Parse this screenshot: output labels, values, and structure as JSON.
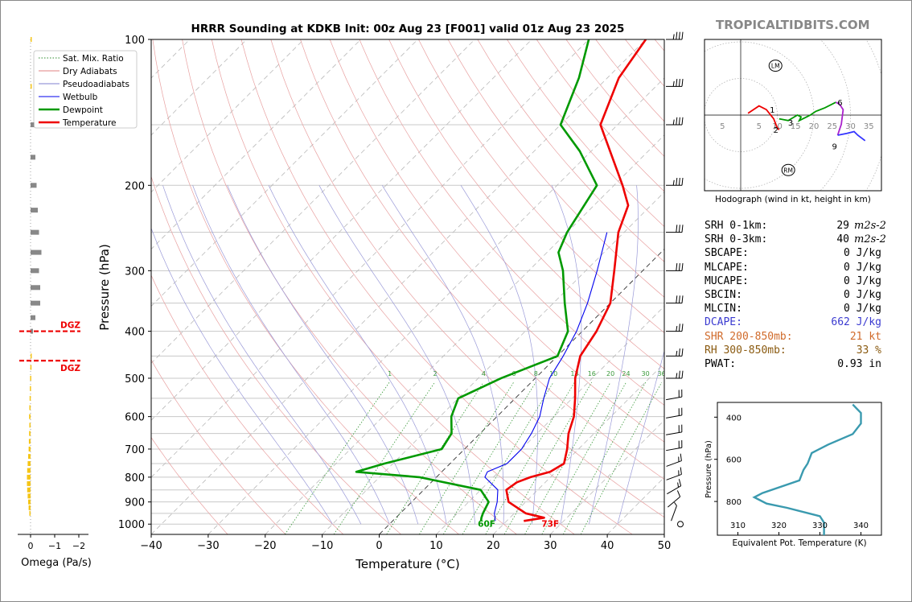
{
  "site_label": "TROPICALTIDBITS.COM",
  "chart_data": [
    {
      "type": "line",
      "name": "skewt",
      "title": "HRRR Sounding at KDKB Init: 00z Aug 23 [F001] valid 01z Aug 23 2025",
      "xlabel": "Temperature (°C)",
      "ylabel": "Pressure (hPa)",
      "xlim": [
        -40,
        50
      ],
      "ylim": [
        1050,
        100
      ],
      "y_scale": "log",
      "skew": true,
      "grid": true,
      "legend_position": "top-left",
      "x_ticks": [
        -40,
        -30,
        -20,
        -10,
        0,
        10,
        20,
        30,
        40,
        50
      ],
      "y_ticks": [
        100,
        200,
        300,
        400,
        500,
        600,
        700,
        800,
        900,
        1000
      ],
      "legend": [
        {
          "label": "Sat. Mix. Ratio",
          "color": "#2e8b2e",
          "style": "dotted"
        },
        {
          "label": "Dry Adiabats",
          "color": "#e08080",
          "style": "solid"
        },
        {
          "label": "Pseudoadiabats",
          "color": "#8080d0",
          "style": "solid"
        },
        {
          "label": "Wetbulb",
          "color": "#0000ee",
          "style": "solid"
        },
        {
          "label": "Dewpoint",
          "color": "#009900",
          "style": "solid"
        },
        {
          "label": "Temperature",
          "color": "#ee0000",
          "style": "solid"
        }
      ],
      "series": [
        {
          "name": "Temperature",
          "color": "#ee0000",
          "points": [
            [
              985,
              23.0
            ],
            [
              970,
              26.0
            ],
            [
              950,
              22.0
            ],
            [
              900,
              17.0
            ],
            [
              850,
              14.5
            ],
            [
              820,
              15.0
            ],
            [
              800,
              16.5
            ],
            [
              780,
              19.0
            ],
            [
              750,
              20.0
            ],
            [
              700,
              18.0
            ],
            [
              650,
              15.5
            ],
            [
              600,
              13.5
            ],
            [
              550,
              10.5
            ],
            [
              500,
              7.0
            ],
            [
              450,
              4.0
            ],
            [
              400,
              2.5
            ],
            [
              350,
              0.0
            ],
            [
              300,
              -5.0
            ],
            [
              250,
              -11.0
            ],
            [
              220,
              -14.0
            ],
            [
              200,
              -18.5
            ],
            [
              150,
              -33.0
            ],
            [
              120,
              -38.0
            ],
            [
              100,
              -40.0
            ]
          ]
        },
        {
          "name": "Dewpoint",
          "color": "#009900",
          "points": [
            [
              985,
              15.5
            ],
            [
              970,
              15.0
            ],
            [
              950,
              14.5
            ],
            [
              900,
              13.5
            ],
            [
              850,
              10.0
            ],
            [
              800,
              -3.0
            ],
            [
              780,
              -15.0
            ],
            [
              750,
              -11.5
            ],
            [
              700,
              -4.0
            ],
            [
              650,
              -5.0
            ],
            [
              600,
              -8.0
            ],
            [
              550,
              -10.0
            ],
            [
              500,
              -6.0
            ],
            [
              450,
              0.0
            ],
            [
              400,
              -2.5
            ],
            [
              350,
              -8.0
            ],
            [
              300,
              -14.0
            ],
            [
              275,
              -18.0
            ],
            [
              250,
              -20.0
            ],
            [
              200,
              -23.0
            ],
            [
              170,
              -32.0
            ],
            [
              150,
              -40.0
            ],
            [
              120,
              -45.0
            ],
            [
              100,
              -50.0
            ]
          ]
        },
        {
          "name": "Wetbulb",
          "color": "#0000ee",
          "points": [
            [
              985,
              18.0
            ],
            [
              950,
              16.5
            ],
            [
              900,
              15.0
            ],
            [
              850,
              13.0
            ],
            [
              800,
              8.5
            ],
            [
              780,
              8.0
            ],
            [
              750,
              10.0
            ],
            [
              700,
              10.0
            ],
            [
              650,
              9.0
            ],
            [
              600,
              7.5
            ],
            [
              550,
              5.0
            ],
            [
              500,
              2.5
            ],
            [
              450,
              1.0
            ],
            [
              400,
              -1.0
            ],
            [
              350,
              -4.0
            ],
            [
              300,
              -8.0
            ],
            [
              250,
              -13.0
            ]
          ]
        }
      ],
      "dry_adiabats_theta_c": [
        -30,
        -20,
        -10,
        0,
        10,
        20,
        30,
        40,
        50,
        60,
        70,
        80,
        90,
        100,
        110,
        120,
        130,
        140,
        150,
        160,
        170,
        180,
        190,
        200
      ],
      "pseudoadiabats_c": [
        -10,
        -5,
        0,
        5,
        10,
        15,
        20,
        25,
        30,
        35,
        40
      ],
      "mixing_ratio_gkg": [
        1,
        2,
        4,
        6,
        8,
        10,
        13,
        16,
        20,
        24,
        30,
        36
      ],
      "mixing_ratio_labels": [
        "1",
        "2",
        "4",
        "6",
        "8",
        "10",
        "13",
        "16",
        "20",
        "24",
        "30",
        "36"
      ],
      "annotations": {
        "surface_temp": "73F",
        "surface_dewpoint": "60F",
        "isotherm_zero_c": 0
      },
      "wind_barbs_hpa": [
        1000,
        950,
        900,
        850,
        800,
        750,
        700,
        650,
        600,
        550,
        500,
        450,
        400,
        350,
        300,
        250,
        200,
        150,
        125,
        100
      ],
      "wind_speed_kt": [
        0,
        5,
        10,
        15,
        15,
        15,
        20,
        20,
        20,
        20,
        25,
        25,
        25,
        30,
        30,
        30,
        35,
        35,
        35,
        35
      ],
      "wind_dir_deg": [
        0,
        200,
        230,
        240,
        250,
        250,
        260,
        260,
        260,
        260,
        270,
        270,
        270,
        270,
        270,
        270,
        270,
        270,
        270,
        270
      ]
    },
    {
      "type": "bar",
      "name": "omega",
      "xlabel": "Omega (Pa/s)",
      "xlim": [
        0.2,
        -2
      ],
      "x_ticks": [
        0,
        -1,
        -2
      ],
      "levels_hpa": [
        950,
        925,
        900,
        875,
        850,
        825,
        800,
        775,
        750,
        725,
        700,
        675,
        650,
        625,
        600,
        575,
        550,
        525,
        500,
        475,
        450,
        400,
        375,
        350,
        325,
        300,
        275,
        250,
        225,
        200,
        175,
        150,
        125,
        100,
        75
      ],
      "values": [
        0.05,
        0.08,
        0.1,
        0.12,
        0.14,
        0.15,
        0.15,
        0.14,
        0.12,
        0.1,
        0.08,
        0.07,
        0.06,
        0.05,
        0.06,
        0.05,
        0.04,
        0.03,
        0.02,
        0.01,
        0.0,
        -0.1,
        -0.2,
        -0.4,
        -0.4,
        -0.35,
        -0.45,
        -0.35,
        -0.3,
        -0.25,
        -0.2,
        -0.15,
        0.0,
        0.0,
        0.0
      ],
      "dgz_label": "DGZ",
      "dgz_color": "#ee0000",
      "dgz_hpa": [
        400,
        460
      ]
    },
    {
      "type": "line",
      "name": "hodograph",
      "caption": "Hodograph (wind in kt, height in km)",
      "range_kt": [
        -10,
        38
      ],
      "ring_labels": [
        "5",
        "5",
        "10",
        "15",
        "20",
        "25",
        "30",
        "35"
      ],
      "height_labels": [
        {
          "label": "1",
          "u": 7.5,
          "v": 1.5
        },
        {
          "label": "2",
          "u": 8.5,
          "v": -4.0
        },
        {
          "label": "3",
          "u": 12.5,
          "v": -2.0
        },
        {
          "label": "6",
          "u": 26.0,
          "v": 3.5
        },
        {
          "label": "9",
          "u": 24.5,
          "v": -8.5
        }
      ],
      "markers": [
        {
          "label": "LM",
          "u": 9.5,
          "v": 13.5
        },
        {
          "label": "RM",
          "u": 13.0,
          "v": -15.0
        }
      ],
      "segments": [
        {
          "color": "#ee0000",
          "points": [
            [
              2,
              0.5
            ],
            [
              5,
              2.5
            ],
            [
              7,
              1.5
            ],
            [
              9,
              -1
            ],
            [
              10,
              -3.5
            ],
            [
              10.5,
              -4
            ]
          ]
        },
        {
          "color": "#009900",
          "points": [
            [
              10.5,
              -1
            ],
            [
              13,
              -1.5
            ],
            [
              15.5,
              0
            ],
            [
              16.5,
              -0.5
            ],
            [
              16,
              -1.5
            ],
            [
              18,
              -0.5
            ],
            [
              19,
              0
            ],
            [
              20.5,
              1
            ],
            [
              23,
              2
            ],
            [
              26,
              3.5
            ]
          ]
        },
        {
          "color": "#aa22cc",
          "points": [
            [
              26,
              3.5
            ],
            [
              27,
              3
            ],
            [
              28,
              1.5
            ],
            [
              27.5,
              -2.5
            ],
            [
              27,
              -4
            ],
            [
              26.5,
              -5.5
            ]
          ]
        },
        {
          "color": "#3333ff",
          "points": [
            [
              26.5,
              -5.5
            ],
            [
              29,
              -5
            ],
            [
              31,
              -4.5
            ],
            [
              32,
              -5.5
            ],
            [
              34,
              -7
            ]
          ]
        }
      ]
    },
    {
      "type": "line",
      "name": "theta_e",
      "xlabel": "Equivalent Pot. Temperature (K)",
      "ylabel": "Pressure (hPa)",
      "xlim": [
        305,
        345
      ],
      "ylim": [
        960,
        330
      ],
      "x_ticks": [
        310,
        320,
        330,
        340
      ],
      "y_ticks": [
        400,
        600,
        800
      ],
      "color": "#3a9aaf",
      "series": [
        {
          "points": [
            [
              960,
              331
            ],
            [
              900,
              331
            ],
            [
              870,
              330
            ],
            [
              830,
              322
            ],
            [
              810,
              317
            ],
            [
              790,
              315
            ],
            [
              780,
              314
            ],
            [
              760,
              316
            ],
            [
              700,
              325
            ],
            [
              650,
              326
            ],
            [
              620,
              327
            ],
            [
              570,
              328
            ],
            [
              530,
              332
            ],
            [
              480,
              338
            ],
            [
              430,
              340
            ],
            [
              380,
              340
            ],
            [
              340,
              338
            ]
          ]
        }
      ]
    }
  ],
  "params": [
    {
      "label": "SRH 0-1km:",
      "value": "29",
      "unit": "m2s-2",
      "color": "#000000"
    },
    {
      "label": "SRH 0-3km:",
      "value": "40",
      "unit": "m2s-2",
      "color": "#000000"
    },
    {
      "label": "SBCAPE:",
      "value": "0 J/kg",
      "color": "#000000"
    },
    {
      "label": "MLCAPE:",
      "value": "0 J/kg",
      "color": "#000000"
    },
    {
      "label": "MUCAPE:",
      "value": "0 J/kg",
      "color": "#000000"
    },
    {
      "label": "SBCIN:",
      "value": "0 J/kg",
      "color": "#000000"
    },
    {
      "label": "MLCIN:",
      "value": "0 J/kg",
      "color": "#000000"
    },
    {
      "label": "DCAPE:",
      "value": "662 J/kg",
      "color": "#3a3ad0"
    },
    {
      "label": "SHR 200-850mb:",
      "value": "21 kt",
      "color": "#d06a2a"
    },
    {
      "label": "RH 300-850mb:",
      "value": "33 %",
      "color": "#8a5a10"
    },
    {
      "label": "PWAT:",
      "value": "0.93 in",
      "color": "#000000"
    }
  ]
}
